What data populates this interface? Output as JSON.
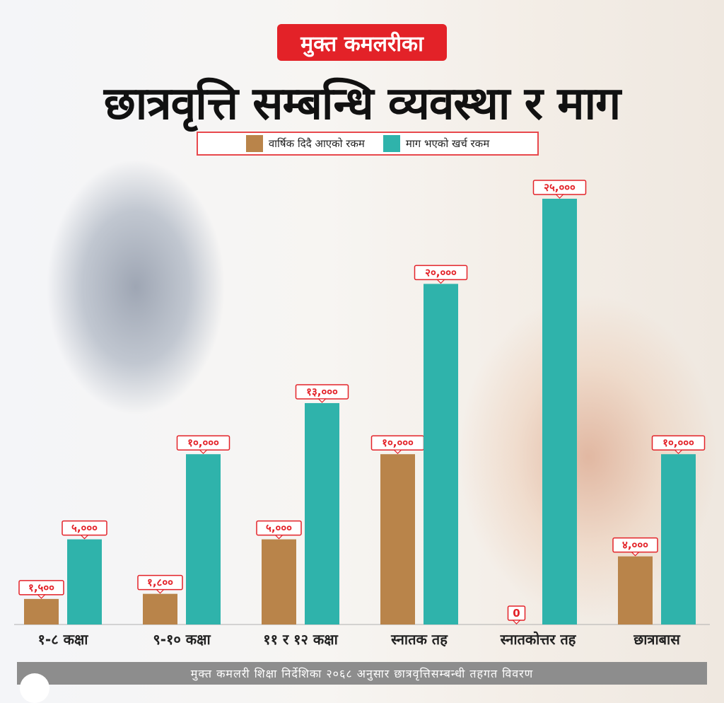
{
  "header": {
    "tag": "मुक्त कमलरीका",
    "title": "छात्रवृत्ति सम्बन्धि व्यवस्था र माग"
  },
  "legend": {
    "given": "वार्षिक दिदै आएको रकम",
    "demanded": "माग भएको खर्च रकम"
  },
  "colors": {
    "given": "#b9844a",
    "demanded": "#2fb3ab",
    "accent": "#e32228"
  },
  "footer": {
    "source": "मुक्त कमलरी शिक्षा निर्देशिका २०६८ अनुसार छात्रवृत्तिसम्बन्धी तहगत विवरण"
  },
  "chart_data": {
    "type": "bar",
    "categories": [
      "१-८ कक्षा",
      "९-१० कक्षा",
      "११ र १२ कक्षा",
      "स्नातक तह",
      "स्नातकोत्तर तह",
      "छात्राबास"
    ],
    "series": [
      {
        "name": "वार्षिक दिदै आएको रकम",
        "values": [
          1500,
          1800,
          5000,
          10000,
          0,
          4000
        ],
        "labels": [
          "१,५००",
          "१,८००",
          "५,०००",
          "१०,०००",
          "0",
          "४,०००"
        ]
      },
      {
        "name": "माग भएको खर्च रकम",
        "values": [
          5000,
          10000,
          13000,
          20000,
          25000,
          10000
        ],
        "labels": [
          "५,०००",
          "१०,०००",
          "१३,०००",
          "२०,०००",
          "२५,०००",
          "१०,०००"
        ]
      }
    ],
    "ylim": [
      0,
      25000
    ],
    "grid": false,
    "legend_position": "top-center"
  }
}
